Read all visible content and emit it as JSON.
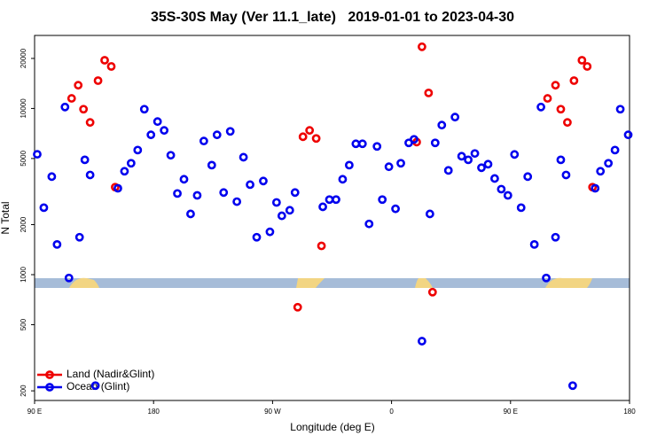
{
  "chart_data": {
    "type": "scatter",
    "title": "35S-30S May (Ver 11.1_late)   2019-01-01 to 2023-04-30",
    "x_label": "Longitude (deg E)",
    "y_label": "N Total",
    "xlim": [
      90,
      540
    ],
    "ylim": [
      175,
      27500
    ],
    "ylog": true,
    "legend": "bottom-left",
    "xticks": [
      {
        "value": 90,
        "label": "90 E"
      },
      180,
      {
        "value": 270,
        "label": "90 W"
      },
      {
        "value": 360,
        "label": "0"
      },
      {
        "value": 450,
        "label": "90 E"
      },
      {
        "value": 540,
        "label": "180"
      }
    ],
    "yticks": [
      200,
      500,
      1000,
      2000,
      5000,
      10000,
      20000
    ],
    "series": [
      {
        "name": "Land (Nadir&Glint)",
        "color": "#ee0000",
        "x": [
          118,
          123,
          127,
          132,
          138,
          143,
          148,
          151,
          289,
          293,
          298,
          303,
          307,
          379,
          383,
          388,
          391,
          478,
          484,
          488,
          493,
          498,
          504,
          508,
          512
        ],
        "values": [
          11500,
          13800,
          9900,
          8240,
          14700,
          19500,
          17900,
          3360,
          637,
          6760,
          7380,
          6600,
          1490,
          6280,
          23500,
          12400,
          785,
          11500,
          13800,
          9900,
          8240,
          14700,
          19500,
          17900,
          3360
        ]
      },
      {
        "name": "Ocean (Glint)",
        "color": "#0000ee",
        "x": [
          92,
          97,
          103,
          107,
          113,
          116,
          124,
          128,
          132,
          136,
          153,
          158,
          163,
          168,
          173,
          178,
          183,
          188,
          193,
          198,
          203,
          208,
          213,
          218,
          224,
          228,
          233,
          238,
          243,
          248,
          253,
          258,
          263,
          268,
          273,
          277,
          283,
          287,
          308,
          313,
          318,
          323,
          328,
          333,
          338,
          343,
          349,
          353,
          358,
          363,
          367,
          373,
          377,
          383,
          389,
          393,
          398,
          403,
          408,
          413,
          418,
          423,
          428,
          433,
          438,
          443,
          448,
          453,
          458,
          463,
          468,
          473,
          477,
          484,
          488,
          492,
          497,
          514,
          518,
          524,
          529,
          533,
          539
        ],
        "values": [
          5300,
          2530,
          3890,
          1520,
          10200,
          955,
          1680,
          4910,
          3980,
          215,
          3310,
          4190,
          4680,
          5620,
          9900,
          6940,
          8340,
          7380,
          5230,
          3080,
          3750,
          2320,
          3000,
          6370,
          4560,
          6940,
          3120,
          7280,
          2750,
          5090,
          3480,
          1680,
          3660,
          1810,
          2720,
          2260,
          2440,
          3120,
          2560,
          2830,
          2830,
          3750,
          4560,
          6130,
          6130,
          2020,
          5910,
          2830,
          4460,
          2490,
          4680,
          6210,
          6520,
          398,
          2320,
          6210,
          7940,
          4240,
          8870,
          5160,
          4910,
          5360,
          4400,
          4620,
          3790,
          3270,
          3000,
          5290,
          2530,
          3890,
          1520,
          10200,
          955,
          1680,
          4910,
          3980,
          215,
          3310,
          4190,
          4680,
          5620,
          9900,
          6940
        ]
      }
    ]
  }
}
